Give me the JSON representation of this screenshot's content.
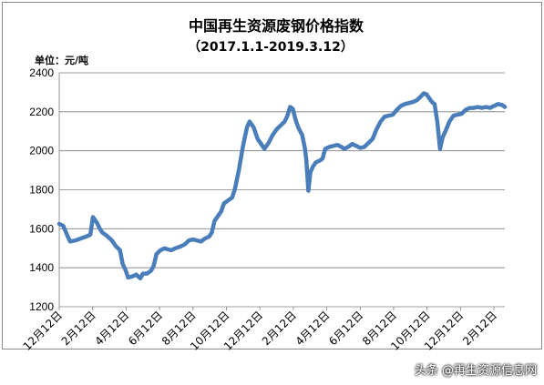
{
  "chart_data": {
    "type": "line",
    "title": "中国再生资源废钢价格指数",
    "subtitle": "（2017.1.1-2019.3.12）",
    "ylabel": "单位：元/吨",
    "xlabel": "",
    "ylim": [
      1200,
      2400
    ],
    "yticks": [
      1200,
      1400,
      1600,
      1800,
      2000,
      2200,
      2400
    ],
    "grid": true,
    "legend": "none",
    "x_tick_labels": [
      "12月12日",
      "2月12日",
      "4月12日",
      "6月12日",
      "8月12日",
      "10月12日",
      "12月12日",
      "2月12日",
      "4月12日",
      "6月12日",
      "8月12日",
      "10月12日",
      "12月12日",
      "2月12日"
    ],
    "series": [
      {
        "color": "#4a7ebb",
        "points": [
          [
            0,
            1625
          ],
          [
            0.3,
            1615
          ],
          [
            0.6,
            1565
          ],
          [
            0.8,
            1535
          ],
          [
            1.2,
            1540
          ],
          [
            1.6,
            1550
          ],
          [
            2.0,
            1560
          ],
          [
            2.3,
            1570
          ],
          [
            2.5,
            1660
          ],
          [
            2.8,
            1630
          ],
          [
            3.0,
            1600
          ],
          [
            3.2,
            1580
          ],
          [
            3.5,
            1565
          ],
          [
            3.9,
            1540
          ],
          [
            4.2,
            1510
          ],
          [
            4.5,
            1490
          ],
          [
            4.7,
            1420
          ],
          [
            4.9,
            1390
          ],
          [
            5.1,
            1350
          ],
          [
            5.4,
            1355
          ],
          [
            5.7,
            1365
          ],
          [
            6.0,
            1345
          ],
          [
            6.2,
            1370
          ],
          [
            6.5,
            1370
          ],
          [
            6.8,
            1385
          ],
          [
            7.0,
            1410
          ],
          [
            7.2,
            1470
          ],
          [
            7.5,
            1490
          ],
          [
            7.8,
            1500
          ],
          [
            8.0,
            1495
          ],
          [
            8.3,
            1490
          ],
          [
            8.6,
            1500
          ],
          [
            9.0,
            1510
          ],
          [
            9.3,
            1520
          ],
          [
            9.6,
            1540
          ],
          [
            9.9,
            1545
          ],
          [
            10.2,
            1540
          ],
          [
            10.5,
            1535
          ],
          [
            10.8,
            1550
          ],
          [
            11.1,
            1560
          ],
          [
            11.3,
            1580
          ],
          [
            11.5,
            1640
          ],
          [
            11.8,
            1670
          ],
          [
            12.0,
            1690
          ],
          [
            12.2,
            1730
          ],
          [
            12.5,
            1745
          ],
          [
            12.8,
            1760
          ],
          [
            13.0,
            1800
          ],
          [
            13.3,
            1900
          ],
          [
            13.6,
            2020
          ],
          [
            13.9,
            2120
          ],
          [
            14.1,
            2150
          ],
          [
            14.4,
            2120
          ],
          [
            14.7,
            2060
          ],
          [
            15.0,
            2030
          ],
          [
            15.2,
            2010
          ],
          [
            15.5,
            2040
          ],
          [
            15.8,
            2080
          ],
          [
            16.1,
            2110
          ],
          [
            16.4,
            2130
          ],
          [
            16.7,
            2150
          ],
          [
            16.9,
            2180
          ],
          [
            17.1,
            2225
          ],
          [
            17.3,
            2215
          ],
          [
            17.5,
            2160
          ],
          [
            17.7,
            2120
          ],
          [
            18.0,
            2080
          ],
          [
            18.2,
            2010
          ],
          [
            18.3,
            1950
          ],
          [
            18.45,
            1795
          ],
          [
            18.6,
            1890
          ],
          [
            18.8,
            1920
          ],
          [
            19.0,
            1940
          ],
          [
            19.3,
            1950
          ],
          [
            19.5,
            1960
          ],
          [
            19.7,
            2010
          ],
          [
            20.0,
            2020
          ],
          [
            20.3,
            2025
          ],
          [
            20.6,
            2030
          ],
          [
            20.9,
            2020
          ],
          [
            21.1,
            2010
          ],
          [
            21.4,
            2020
          ],
          [
            21.7,
            2035
          ],
          [
            22.0,
            2025
          ],
          [
            22.3,
            2015
          ],
          [
            22.6,
            2020
          ],
          [
            22.9,
            2040
          ],
          [
            23.2,
            2060
          ],
          [
            23.5,
            2110
          ],
          [
            23.8,
            2150
          ],
          [
            24.1,
            2175
          ],
          [
            24.4,
            2180
          ],
          [
            24.7,
            2185
          ],
          [
            25.0,
            2210
          ],
          [
            25.3,
            2230
          ],
          [
            25.6,
            2240
          ],
          [
            25.9,
            2245
          ],
          [
            26.2,
            2250
          ],
          [
            26.5,
            2260
          ],
          [
            26.8,
            2280
          ],
          [
            27.0,
            2295
          ],
          [
            27.2,
            2290
          ],
          [
            27.4,
            2270
          ],
          [
            27.6,
            2250
          ],
          [
            27.8,
            2240
          ],
          [
            28.0,
            2150
          ],
          [
            28.2,
            2010
          ],
          [
            28.4,
            2070
          ],
          [
            28.6,
            2100
          ],
          [
            28.9,
            2150
          ],
          [
            29.2,
            2180
          ],
          [
            29.5,
            2185
          ],
          [
            29.8,
            2190
          ],
          [
            30.1,
            2210
          ],
          [
            30.4,
            2220
          ],
          [
            30.7,
            2220
          ],
          [
            31.0,
            2225
          ],
          [
            31.3,
            2220
          ],
          [
            31.6,
            2225
          ],
          [
            31.9,
            2220
          ],
          [
            32.2,
            2230
          ],
          [
            32.5,
            2240
          ],
          [
            32.8,
            2235
          ],
          [
            33.0,
            2225
          ]
        ]
      }
    ]
  },
  "watermark": "头条 @再生资源信息网"
}
